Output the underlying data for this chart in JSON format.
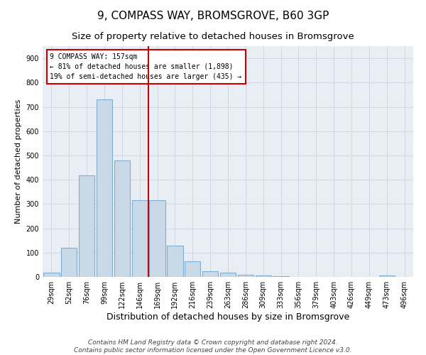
{
  "title": "9, COMPASS WAY, BROMSGROVE, B60 3GP",
  "subtitle": "Size of property relative to detached houses in Bromsgrove",
  "xlabel": "Distribution of detached houses by size in Bromsgrove",
  "ylabel": "Number of detached properties",
  "categories": [
    "29sqm",
    "52sqm",
    "76sqm",
    "99sqm",
    "122sqm",
    "146sqm",
    "169sqm",
    "192sqm",
    "216sqm",
    "239sqm",
    "263sqm",
    "286sqm",
    "309sqm",
    "333sqm",
    "356sqm",
    "379sqm",
    "403sqm",
    "426sqm",
    "449sqm",
    "473sqm",
    "496sqm"
  ],
  "values": [
    18,
    120,
    418,
    730,
    478,
    315,
    315,
    128,
    65,
    22,
    18,
    10,
    5,
    2,
    0,
    0,
    0,
    0,
    0,
    5,
    0
  ],
  "bar_color": "#c9d9e8",
  "bar_edge_color": "#7fafd0",
  "vline_x": 5.5,
  "vline_color": "#cc0000",
  "annotation_text": "9 COMPASS WAY: 157sqm\n← 81% of detached houses are smaller (1,898)\n19% of semi-detached houses are larger (435) →",
  "annotation_box_color": "#ffffff",
  "annotation_box_edge_color": "#cc0000",
  "ylim": [
    0,
    950
  ],
  "yticks": [
    0,
    100,
    200,
    300,
    400,
    500,
    600,
    700,
    800,
    900
  ],
  "grid_color": "#d0d8e4",
  "bg_color": "#e8eef4",
  "footer": "Contains HM Land Registry data © Crown copyright and database right 2024.\nContains public sector information licensed under the Open Government Licence v3.0.",
  "title_fontsize": 11,
  "subtitle_fontsize": 9.5,
  "xlabel_fontsize": 9,
  "ylabel_fontsize": 8,
  "tick_fontsize": 7,
  "footer_fontsize": 6.5,
  "annotation_fontsize": 7
}
